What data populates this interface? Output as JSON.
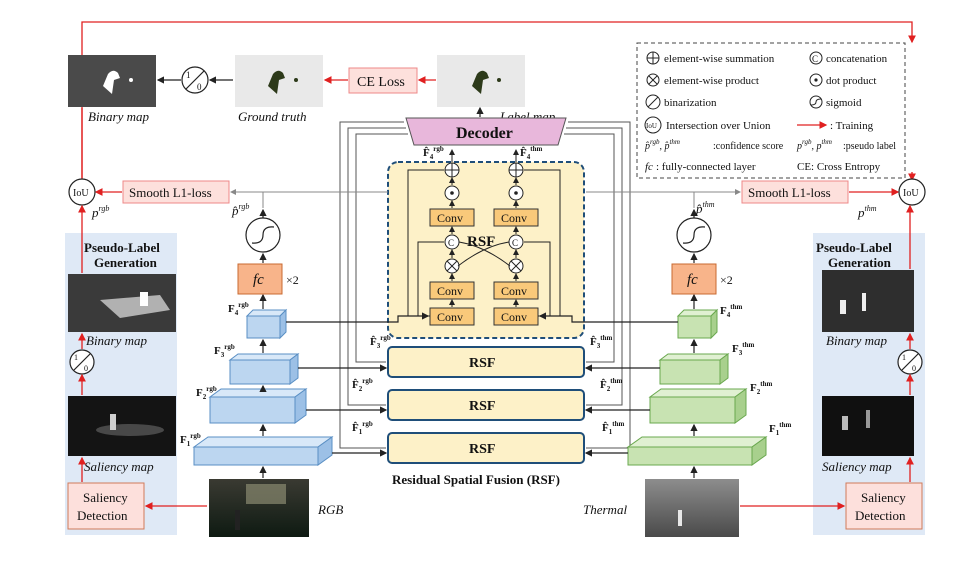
{
  "title": "Residual Spatial Fusion (RSF)",
  "top": {
    "binary_map_label": "Binary map",
    "ground_truth_label": "Ground truth",
    "ce_loss": "CE Loss",
    "label_map_label": "Label map"
  },
  "decoder": "Decoder",
  "rsf_label": "RSF",
  "conv_label": "Conv",
  "fc_label": "fc",
  "fc_times": "×2",
  "smooth_loss": "Smooth L1-loss",
  "iou": "IoU",
  "p_rgb": "p",
  "p_rgb_sup": "rgb",
  "p_thm_sup": "thm",
  "phat_rgb_sup": "rgb",
  "phat_thm_sup": "thm",
  "features": {
    "F": "F",
    "rgb": [
      "1",
      "2",
      "3",
      "4"
    ],
    "thm": [
      "1",
      "2",
      "3",
      "4"
    ]
  },
  "left_panel": {
    "title_line1": "Pseudo-Label",
    "title_line2": "Generation",
    "binary_map": "Binary map",
    "saliency_map": "Saliency map",
    "detection_line1": "Saliency",
    "detection_line2": "Detection"
  },
  "right_panel": {
    "title_line1": "Pseudo-Label",
    "title_line2": "Generation",
    "binary_map": "Binary map",
    "saliency_map": "Saliency map",
    "detection_line1": "Saliency",
    "detection_line2": "Detection"
  },
  "input_rgb": "RGB",
  "input_thermal": "Thermal",
  "binarize_symbol_top": "1",
  "binarize_symbol_bottom": "0",
  "concat_symbol": "C",
  "legend": {
    "summation": "element-wise summation",
    "concatenation": "concatenation",
    "product": "element-wise product",
    "dot": "dot product",
    "binarization": "binarization",
    "sigmoid": "sigmoid",
    "iou": "Intersection over Union",
    "training": ": Training",
    "conf_line": ":confidence score",
    "pseudo_line": ":pseudo label",
    "fc_line": ": fully-connected layer",
    "ce_line": "CE: Cross Entropy"
  },
  "colors": {
    "red": "#e02020",
    "pink_box": "#fde0dc",
    "orange_box": "#f8b48a",
    "rsf_fill": "#fdf1c8",
    "conv_fill": "#f9c97a",
    "decoder_fill": "#e8b7db",
    "blue_panel": "#dfe9f6",
    "blue_feat": "#bcd6f0",
    "green_feat": "#c8e3b2",
    "dashed_blue": "#1f4e79"
  }
}
